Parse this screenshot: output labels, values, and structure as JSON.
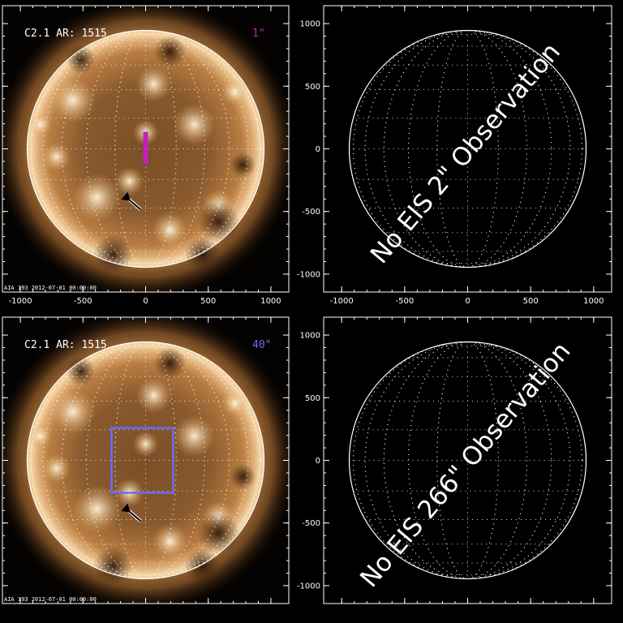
{
  "panels": [
    {
      "kind": "image",
      "title": "C2.1 AR: 1515",
      "label": "1\"",
      "label_color": "#c020c0",
      "overlay": "slit",
      "overlay_color": "#c020c0",
      "footer": "AIA 193   2012-07-01  00:00:00",
      "x_ticks": [
        "-1000",
        "-500",
        "0",
        "500",
        "1000"
      ],
      "y_ticks": [],
      "arrow_icon": "arrow-icon"
    },
    {
      "kind": "grid",
      "message": "No EIS 2\" Observation",
      "x_ticks": [
        "-1000",
        "-500",
        "0",
        "500",
        "1000"
      ],
      "y_ticks": [
        "1000",
        "500",
        "0",
        "-500",
        "-1000"
      ]
    },
    {
      "kind": "image",
      "title": "C2.1 AR: 1515",
      "label": "40\"",
      "label_color": "#6a6aff",
      "overlay": "box",
      "overlay_color": "#6a6aff",
      "footer": "AIA 193   2012-07-01  00:00:00",
      "x_ticks": [],
      "y_ticks": [],
      "arrow_icon": "arrow-icon"
    },
    {
      "kind": "grid",
      "message": "No EIS 266\" Observation",
      "x_ticks": [],
      "y_ticks": [
        "1000",
        "500",
        "0",
        "-500",
        "-1000"
      ]
    }
  ]
}
